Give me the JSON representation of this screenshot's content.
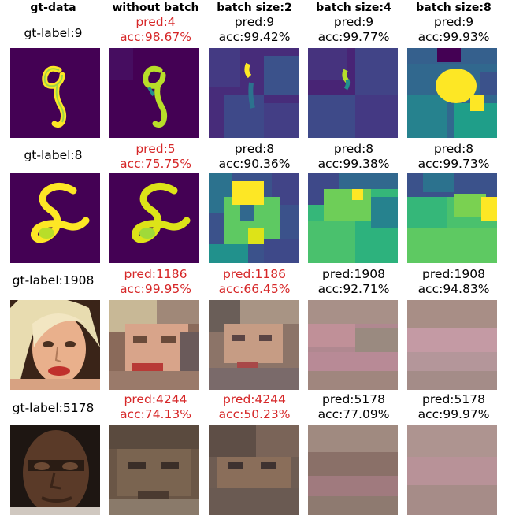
{
  "headers": [
    "gt-data",
    "without batch",
    "batch size:2",
    "batch size:4",
    "batch size:8"
  ],
  "rows": [
    {
      "gt_label": "gt-label:9",
      "cells": [
        {
          "pred": "pred:4",
          "acc": "acc:98.67%",
          "wrong": true
        },
        {
          "pred": "pred:9",
          "acc": "acc:99.42%",
          "wrong": false
        },
        {
          "pred": "pred:9",
          "acc": "acc:99.77%",
          "wrong": false
        },
        {
          "pred": "pred:9",
          "acc": "acc:99.93%",
          "wrong": false
        }
      ]
    },
    {
      "gt_label": "gt-label:8",
      "cells": [
        {
          "pred": "pred:5",
          "acc": "acc:75.75%",
          "wrong": true
        },
        {
          "pred": "pred:8",
          "acc": "acc:90.36%",
          "wrong": false
        },
        {
          "pred": "pred:8",
          "acc": "acc:99.38%",
          "wrong": false
        },
        {
          "pred": "pred:8",
          "acc": "acc:99.73%",
          "wrong": false
        }
      ]
    },
    {
      "gt_label": "gt-label:1908",
      "cells": [
        {
          "pred": "pred:1186",
          "acc": "acc:99.95%",
          "wrong": true
        },
        {
          "pred": "pred:1186",
          "acc": "acc:66.45%",
          "wrong": true
        },
        {
          "pred": "pred:1908",
          "acc": "acc:92.71%",
          "wrong": false
        },
        {
          "pred": "pred:1908",
          "acc": "acc:94.83%",
          "wrong": false
        }
      ]
    },
    {
      "gt_label": "gt-label:5178",
      "cells": [
        {
          "pred": "pred:4244",
          "acc": "acc:74.13%",
          "wrong": true
        },
        {
          "pred": "pred:4244",
          "acc": "acc:50.23%",
          "wrong": true
        },
        {
          "pred": "pred:5178",
          "acc": "acc:77.09%",
          "wrong": false
        },
        {
          "pred": "pred:5178",
          "acc": "acc:99.97%",
          "wrong": false
        }
      ]
    }
  ],
  "colors": {
    "wrong_text": "#d62728",
    "correct_text": "#000000",
    "viridis_dark": "#440154",
    "viridis_yellow": "#fde725"
  }
}
